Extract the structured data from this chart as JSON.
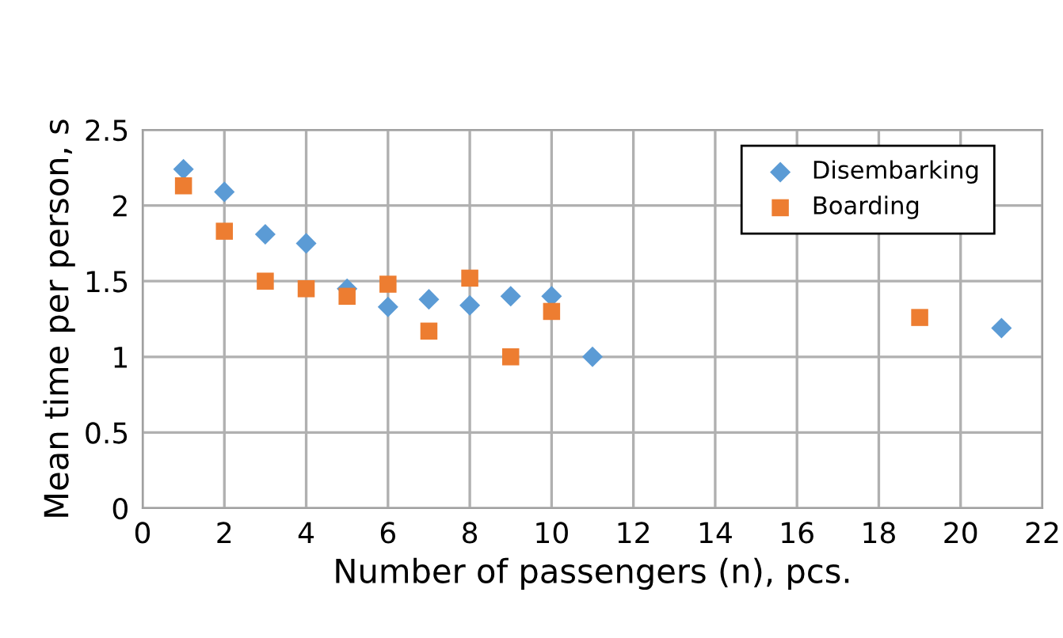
{
  "chart_data": {
    "type": "scatter",
    "xlabel": "Number of passengers (n), pcs.",
    "ylabel": "Mean time per person, s",
    "xlim": [
      0,
      22
    ],
    "xticks": [
      0,
      2,
      4,
      6,
      8,
      10,
      12,
      14,
      16,
      18,
      20,
      22
    ],
    "ylim": [
      0,
      2.5
    ],
    "yticks": [
      0,
      0.5,
      1,
      1.5,
      2,
      2.5
    ],
    "grid": true,
    "legend": "top right",
    "series": [
      {
        "name": "Disembarking",
        "color": "#5b9bd5",
        "marker": "diamond",
        "x": [
          1,
          2,
          3,
          4,
          5,
          6,
          7,
          8,
          9,
          10,
          11,
          21
        ],
        "values": [
          2.24,
          2.09,
          1.81,
          1.75,
          1.45,
          1.33,
          1.38,
          1.34,
          1.4,
          1.4,
          1.0,
          1.19
        ]
      },
      {
        "name": "Boarding",
        "color": "#ed7d31",
        "marker": "square",
        "x": [
          1,
          2,
          3,
          4,
          5,
          6,
          7,
          8,
          9,
          10,
          19
        ],
        "values": [
          2.13,
          1.83,
          1.5,
          1.45,
          1.4,
          1.48,
          1.17,
          1.52,
          1.0,
          1.3,
          1.26
        ]
      }
    ]
  }
}
